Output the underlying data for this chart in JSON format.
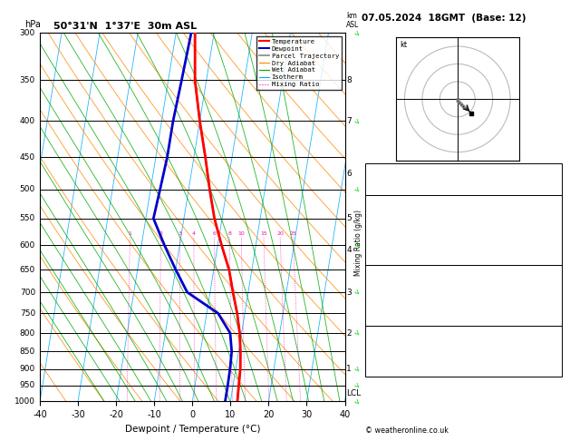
{
  "title_left": "50°31'N  1°37'E  30m ASL",
  "title_right": "07.05.2024  18GMT  (Base: 12)",
  "xlabel": "Dewpoint / Temperature (°C)",
  "pressure_levels": [
    300,
    350,
    400,
    450,
    500,
    550,
    600,
    650,
    700,
    750,
    800,
    850,
    900,
    950,
    1000
  ],
  "temp_actual": [
    -15,
    -13,
    -10,
    -7,
    -4.5,
    -2,
    1,
    4,
    6,
    8,
    9.5,
    10.5,
    11.2,
    11.5,
    11.8
  ],
  "temp_p": [
    300,
    350,
    400,
    450,
    500,
    550,
    600,
    650,
    700,
    750,
    800,
    850,
    900,
    950,
    1000
  ],
  "dewp_actual": [
    -16,
    -16.5,
    -17,
    -17,
    -17.5,
    -18,
    -14,
    -10,
    -6,
    3,
    7,
    8.2,
    8.5,
    8.6,
    8.6
  ],
  "dewp_p": [
    300,
    350,
    400,
    450,
    500,
    550,
    600,
    650,
    700,
    750,
    800,
    850,
    900,
    950,
    1000
  ],
  "parcel_actual": [
    -15,
    -13,
    -10,
    -7,
    -4.5,
    -2,
    1,
    4,
    6,
    8,
    9.5,
    10.5,
    11.2,
    11.5,
    11.8
  ],
  "parcel_p": [
    300,
    350,
    400,
    450,
    500,
    550,
    600,
    650,
    700,
    750,
    800,
    850,
    900,
    950,
    1000
  ],
  "p_min": 300,
  "p_max": 1000,
  "t_min": -40,
  "t_max": 40,
  "skew_factor": 30,
  "temp_color": "#ff0000",
  "dewp_color": "#0000cc",
  "parcel_color": "#888888",
  "dry_adiabat_color": "#ff8800",
  "wet_adiabat_color": "#00aa00",
  "isotherm_color": "#00aaff",
  "mixing_ratio_color": "#ff00aa",
  "background_color": "#ffffff",
  "mixing_ratio_values": [
    1,
    2,
    3,
    4,
    6,
    8,
    10,
    15,
    20,
    25
  ],
  "km_labels": [
    [
      8,
      350
    ],
    [
      7,
      400
    ],
    [
      6,
      475
    ],
    [
      5,
      550
    ],
    [
      4,
      610
    ],
    [
      3,
      700
    ],
    [
      2,
      800
    ],
    [
      1,
      900
    ],
    [
      "LCL",
      975
    ]
  ],
  "hodo_u": [
    0,
    0,
    1,
    2,
    3,
    5,
    8
  ],
  "hodo_v": [
    0,
    -1,
    -2,
    -3,
    -4,
    -5,
    -8
  ],
  "hodo_storm_u": 8,
  "hodo_storm_v": -8,
  "hodo_circles": [
    10,
    20,
    30
  ],
  "wind_pressures": [
    300,
    400,
    500,
    600,
    700,
    800,
    900,
    950,
    1000
  ],
  "wind_speeds": [
    25,
    22,
    18,
    12,
    8,
    5,
    5,
    5,
    5
  ],
  "wind_dirs": [
    240,
    250,
    260,
    270,
    280,
    290,
    300,
    310,
    330
  ]
}
